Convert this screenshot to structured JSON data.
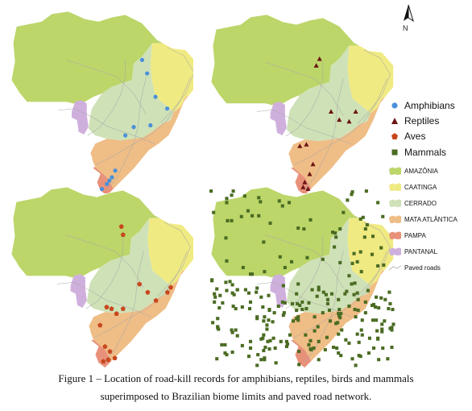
{
  "north_arrow": {
    "label": "N"
  },
  "maps": [
    {
      "id": "amphibians",
      "marker": "circle",
      "color": "#4a90d9"
    },
    {
      "id": "reptiles",
      "marker": "triangle",
      "color": "#6b1414"
    },
    {
      "id": "aves",
      "marker": "pentagon",
      "color": "#c8471e"
    },
    {
      "id": "mammals",
      "marker": "square",
      "color": "#4a6b22"
    }
  ],
  "legend": {
    "species": [
      {
        "label": "Amphibians",
        "marker": "circle",
        "color": "#4a90d9"
      },
      {
        "label": "Reptiles",
        "marker": "triangle",
        "color": "#6b1414"
      },
      {
        "label": "Aves",
        "marker": "pentagon",
        "color": "#c8471e"
      },
      {
        "label": "Mammals",
        "marker": "square",
        "color": "#4a6b22"
      }
    ],
    "biomes": [
      {
        "label": "AMAZÔNIA",
        "color": "#bcd66a"
      },
      {
        "label": "CAATINGA",
        "color": "#f0ea82"
      },
      {
        "label": "CERRADO",
        "color": "#cfe1b7"
      },
      {
        "label": "MATA ATLÂNTICA",
        "color": "#efbd86"
      },
      {
        "label": "PAMPA",
        "color": "#e8917a"
      },
      {
        "label": "PANTANAL",
        "color": "#cfb0dd"
      }
    ],
    "roads_label": "Paved roads"
  },
  "caption": {
    "line1": "Figure 1 – Location of road-kill records for amphibians, reptiles, birds and mammals",
    "line2": "superimposed to Brazilian biome limits and paved road network."
  }
}
